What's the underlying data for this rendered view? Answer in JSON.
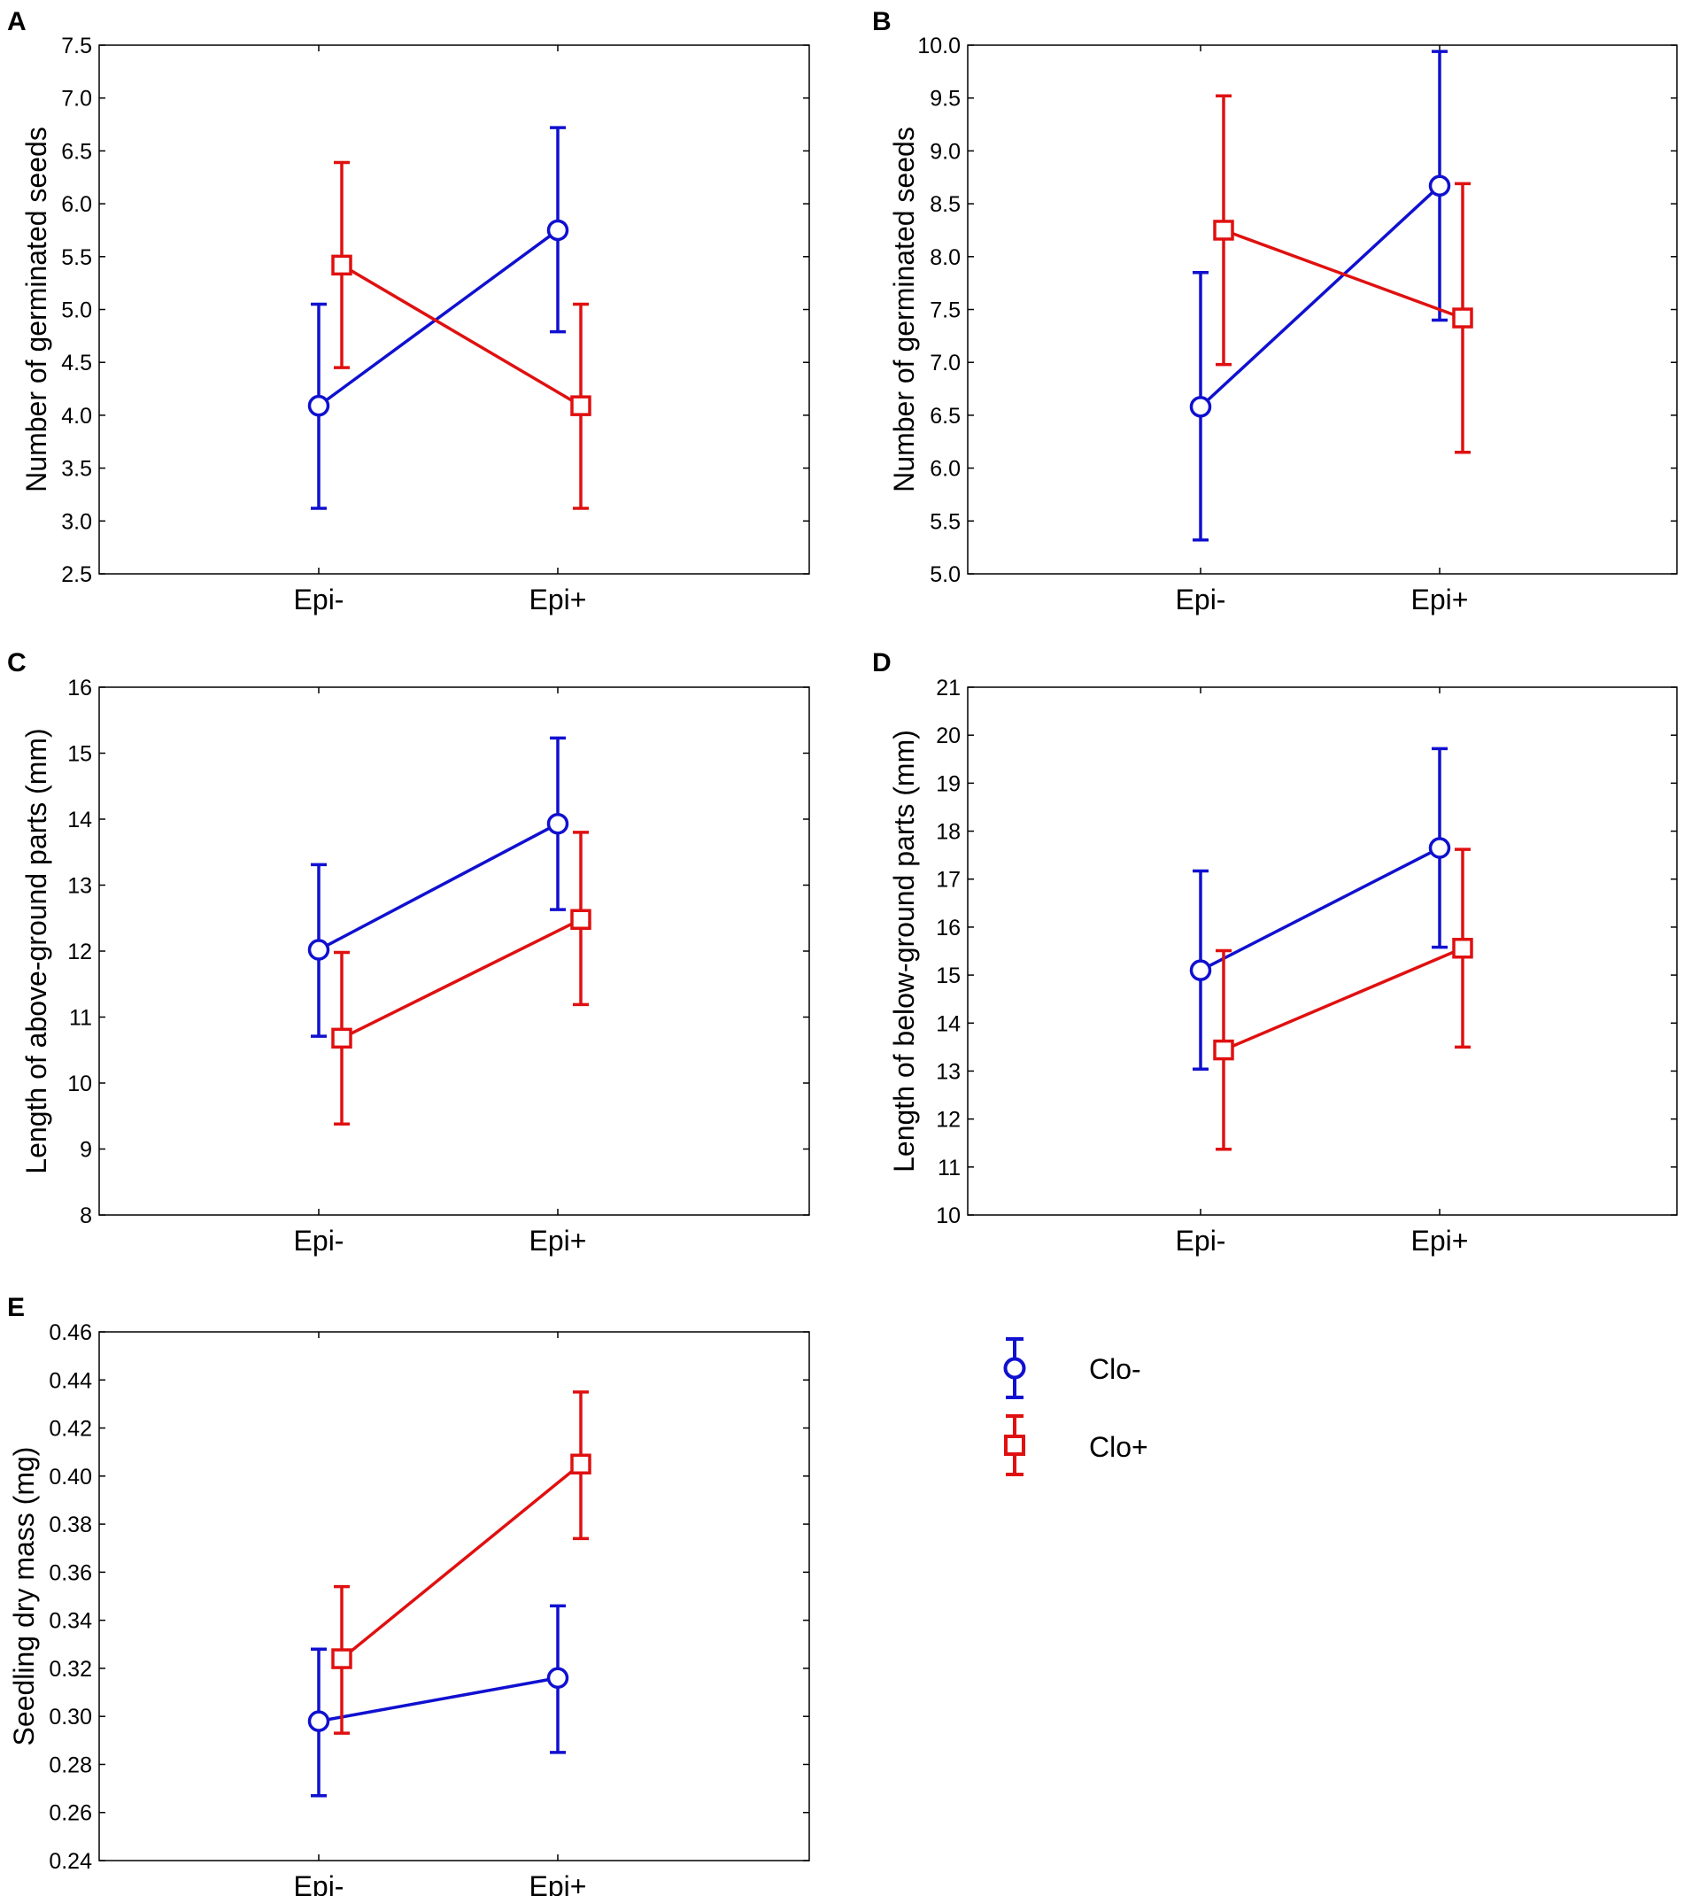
{
  "figure": {
    "legend": [
      {
        "name": "Clo-",
        "color": "#1010d0",
        "marker": "circle"
      },
      {
        "name": "Clo+",
        "color": "#e01010",
        "marker": "square"
      }
    ]
  },
  "chart_data": [
    {
      "panel": "A",
      "type": "line",
      "categories": [
        "Epi-",
        "Epi+"
      ],
      "ylabel": "Number of germinated seeds",
      "xlabel": "",
      "ylim": [
        2.5,
        7.5
      ],
      "yticks": [
        2.5,
        3.0,
        3.5,
        4.0,
        4.5,
        5.0,
        5.5,
        6.0,
        6.5,
        7.0,
        7.5
      ],
      "tick_decimals": 1,
      "series": [
        {
          "name": "Clo-",
          "values": [
            4.09,
            5.75
          ],
          "lower": [
            3.12,
            4.79
          ],
          "upper": [
            5.05,
            6.72
          ]
        },
        {
          "name": "Clo+",
          "values": [
            5.42,
            4.09
          ],
          "lower": [
            4.45,
            3.12
          ],
          "upper": [
            6.39,
            5.05
          ]
        }
      ]
    },
    {
      "panel": "B",
      "type": "line",
      "categories": [
        "Epi-",
        "Epi+"
      ],
      "ylabel": "Number of germinated seeds",
      "xlabel": "",
      "ylim": [
        5.0,
        10.0
      ],
      "yticks": [
        5.0,
        5.5,
        6.0,
        6.5,
        7.0,
        7.5,
        8.0,
        8.5,
        9.0,
        9.5,
        10.0
      ],
      "tick_decimals": 1,
      "series": [
        {
          "name": "Clo-",
          "values": [
            6.58,
            8.67
          ],
          "lower": [
            5.32,
            7.4
          ],
          "upper": [
            7.85,
            9.94
          ]
        },
        {
          "name": "Clo+",
          "values": [
            8.25,
            7.42
          ],
          "lower": [
            6.98,
            6.15
          ],
          "upper": [
            9.52,
            8.69
          ]
        }
      ]
    },
    {
      "panel": "C",
      "type": "line",
      "categories": [
        "Epi-",
        "Epi+"
      ],
      "ylabel": "Length of above-ground parts (mm)",
      "xlabel": "",
      "ylim": [
        8,
        16
      ],
      "yticks": [
        8,
        9,
        10,
        11,
        12,
        13,
        14,
        15,
        16
      ],
      "tick_decimals": 0,
      "series": [
        {
          "name": "Clo-",
          "values": [
            12.02,
            13.93
          ],
          "lower": [
            10.71,
            12.63
          ],
          "upper": [
            13.31,
            15.23
          ]
        },
        {
          "name": "Clo+",
          "values": [
            10.68,
            12.48
          ],
          "lower": [
            9.38,
            11.19
          ],
          "upper": [
            11.98,
            13.8
          ]
        }
      ]
    },
    {
      "panel": "D",
      "type": "line",
      "categories": [
        "Epi-",
        "Epi+"
      ],
      "ylabel": "Length of below-ground parts (mm)",
      "xlabel": "",
      "ylim": [
        10,
        21
      ],
      "yticks": [
        10,
        11,
        12,
        13,
        14,
        15,
        16,
        17,
        18,
        19,
        20,
        21
      ],
      "tick_decimals": 0,
      "series": [
        {
          "name": "Clo-",
          "values": [
            15.1,
            17.65
          ],
          "lower": [
            13.04,
            15.58
          ],
          "upper": [
            17.17,
            19.72
          ]
        },
        {
          "name": "Clo+",
          "values": [
            13.44,
            15.56
          ],
          "lower": [
            11.37,
            13.5
          ],
          "upper": [
            15.51,
            17.62
          ]
        }
      ]
    },
    {
      "panel": "E",
      "type": "line",
      "categories": [
        "Epi-",
        "Epi+"
      ],
      "ylabel": "Seedling dry mass (mg)",
      "xlabel": "",
      "ylim": [
        0.24,
        0.46
      ],
      "yticks": [
        0.24,
        0.26,
        0.28,
        0.3,
        0.32,
        0.34,
        0.36,
        0.38,
        0.4,
        0.42,
        0.44,
        0.46
      ],
      "tick_decimals": 2,
      "series": [
        {
          "name": "Clo-",
          "values": [
            0.298,
            0.316
          ],
          "lower": [
            0.267,
            0.285
          ],
          "upper": [
            0.328,
            0.346
          ]
        },
        {
          "name": "Clo+",
          "values": [
            0.324,
            0.405
          ],
          "lower": [
            0.293,
            0.374
          ],
          "upper": [
            0.354,
            0.435
          ]
        }
      ]
    }
  ]
}
